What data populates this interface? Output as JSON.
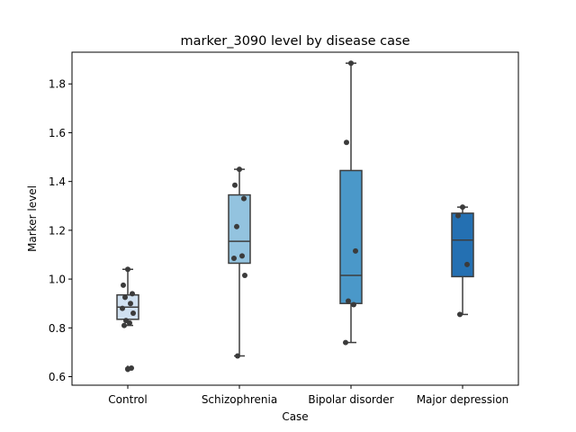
{
  "chart_data": {
    "type": "box",
    "title": "marker_3090 level by disease case",
    "xlabel": "Case",
    "ylabel": "Marker level",
    "ylim": [
      0.565,
      1.93
    ],
    "yticks": [
      0.6,
      0.8,
      1.0,
      1.2,
      1.4,
      1.6,
      1.8
    ],
    "ytick_labels": [
      "0.6",
      "0.8",
      "1.0",
      "1.2",
      "1.4",
      "1.6",
      "1.8"
    ],
    "grid": false,
    "categories": [
      "Control",
      "Schizophrenia",
      "Bipolar disorder",
      "Major depression"
    ],
    "colors": [
      "#d0e1f1",
      "#93c3df",
      "#4a98c9",
      "#2470b2"
    ],
    "boxes": [
      {
        "category": "Control",
        "whisker_low": 0.81,
        "q1": 0.835,
        "median": 0.885,
        "q3": 0.935,
        "whisker_high": 1.04,
        "outliers": [
          0.63,
          0.635
        ]
      },
      {
        "category": "Schizophrenia",
        "whisker_low": 0.685,
        "q1": 1.065,
        "median": 1.155,
        "q3": 1.345,
        "whisker_high": 1.45,
        "outliers": []
      },
      {
        "category": "Bipolar disorder",
        "whisker_low": 0.74,
        "q1": 0.9,
        "median": 1.015,
        "q3": 1.445,
        "whisker_high": 1.885,
        "outliers": []
      },
      {
        "category": "Major depression",
        "whisker_low": 0.855,
        "q1": 1.01,
        "median": 1.16,
        "q3": 1.27,
        "whisker_high": 1.295,
        "outliers": []
      }
    ],
    "points": [
      {
        "category": "Control",
        "values": [
          1.04,
          0.975,
          0.94,
          0.925,
          0.9,
          0.88,
          0.86,
          0.83,
          0.82,
          0.81,
          0.635,
          0.63
        ]
      },
      {
        "category": "Schizophrenia",
        "values": [
          1.45,
          1.385,
          1.33,
          1.215,
          1.095,
          1.085,
          1.015,
          0.685
        ]
      },
      {
        "category": "Bipolar disorder",
        "values": [
          1.885,
          1.56,
          1.115,
          0.91,
          0.895,
          0.74
        ]
      },
      {
        "category": "Major depression",
        "values": [
          1.295,
          1.26,
          1.06,
          0.855
        ]
      }
    ]
  }
}
